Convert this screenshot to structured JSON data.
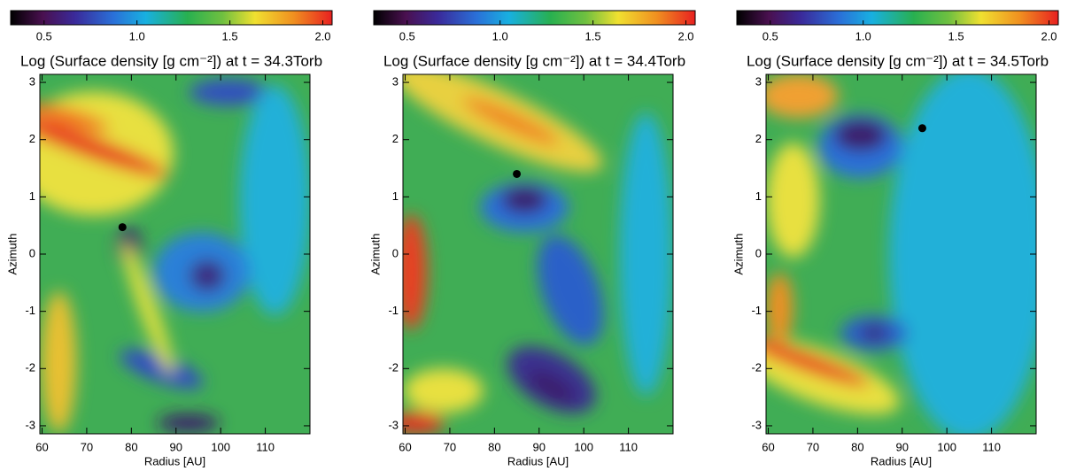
{
  "chart_data": [
    {
      "type": "scatter",
      "title": "Log (Surface density [g cm⁻²]) at t = 34.3Torb",
      "xlabel": "Radius [AU]",
      "ylabel": "Azimuth",
      "x": [
        78
      ],
      "y": [
        0.47
      ],
      "color": "#000000",
      "xlim": [
        59.5,
        120
      ],
      "ylim": [
        -3.14,
        3.14
      ],
      "xticks": [
        60,
        70,
        80,
        90,
        100,
        110
      ],
      "yticks": [
        -3,
        -2,
        -1,
        0,
        1,
        2,
        3
      ],
      "colorbar": {
        "lim": [
          0.32,
          2.05
        ],
        "ticks": [
          0.5,
          {
            "value": 1,
            "label": "1.0"
          },
          1.5,
          {
            "value": 2,
            "label": "2.0"
          }
        ]
      }
    },
    {
      "type": "scatter",
      "title": "Log (Surface density [g cm⁻²]) at t = 34.4Torb",
      "xlabel": "Radius [AU]",
      "ylabel": "Azimuth",
      "x": [
        85
      ],
      "y": [
        1.4
      ],
      "color": "#000000",
      "xlim": [
        59.5,
        120
      ],
      "ylim": [
        -3.14,
        3.14
      ],
      "xticks": [
        60,
        70,
        80,
        90,
        100,
        110
      ],
      "yticks": [
        -3,
        -2,
        -1,
        0,
        1,
        2,
        3
      ],
      "colorbar": {
        "lim": [
          0.32,
          2.05
        ],
        "ticks": [
          0.5,
          {
            "value": 1,
            "label": "1.0"
          },
          1.5,
          {
            "value": 2,
            "label": "2.0"
          }
        ]
      }
    },
    {
      "type": "scatter",
      "title": "Log (Surface density [g cm⁻²]) at t = 34.5Torb",
      "xlabel": "Radius [AU]",
      "ylabel": "Azimuth",
      "x": [
        94.5
      ],
      "y": [
        2.2
      ],
      "color": "#000000",
      "xlim": [
        59.5,
        120
      ],
      "ylim": [
        -3.14,
        3.14
      ],
      "xticks": [
        60,
        70,
        80,
        90,
        100,
        110
      ],
      "yticks": [
        -3,
        -2,
        -1,
        0,
        1,
        2,
        3
      ],
      "colorbar": {
        "lim": [
          0.32,
          2.05
        ],
        "ticks": [
          0.5,
          {
            "value": 1,
            "label": "1.0"
          },
          1.5,
          {
            "value": 2,
            "label": "2.0"
          }
        ]
      }
    }
  ]
}
